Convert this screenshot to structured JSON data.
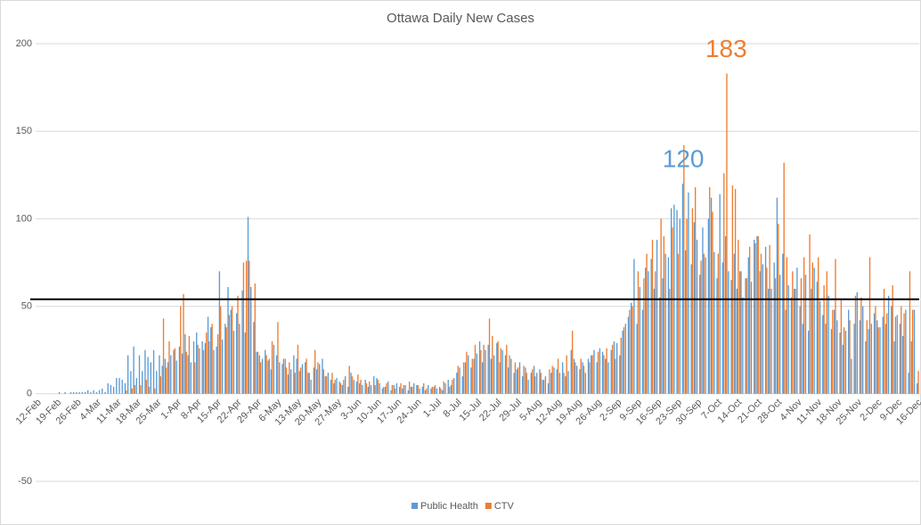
{
  "chart_data": {
    "type": "bar",
    "title": "Ottawa Daily New Cases",
    "categories": [
      "12-Feb",
      null,
      null,
      null,
      null,
      null,
      null,
      "19-Feb",
      null,
      null,
      null,
      null,
      null,
      null,
      "26-Feb",
      null,
      null,
      null,
      null,
      null,
      null,
      "4-Mar",
      null,
      null,
      null,
      null,
      null,
      null,
      "11-Mar",
      null,
      null,
      null,
      null,
      null,
      null,
      "18-Mar",
      null,
      null,
      null,
      null,
      null,
      null,
      "25-Mar",
      null,
      null,
      null,
      null,
      null,
      null,
      "1-Apr",
      null,
      null,
      null,
      null,
      null,
      null,
      "8-Apr",
      null,
      null,
      null,
      null,
      null,
      null,
      "15-Apr",
      null,
      null,
      null,
      null,
      null,
      null,
      "22-Apr",
      null,
      null,
      null,
      null,
      null,
      null,
      "29-Apr",
      null,
      null,
      null,
      null,
      null,
      null,
      "6-May",
      null,
      null,
      null,
      null,
      null,
      null,
      "13-May",
      null,
      null,
      null,
      null,
      null,
      null,
      "20-May",
      null,
      null,
      null,
      null,
      null,
      null,
      "27-May",
      null,
      null,
      null,
      null,
      null,
      null,
      "3-Jun",
      null,
      null,
      null,
      null,
      null,
      null,
      "10-Jun",
      null,
      null,
      null,
      null,
      null,
      null,
      "17-Jun",
      null,
      null,
      null,
      null,
      null,
      null,
      "24-Jun",
      null,
      null,
      null,
      null,
      null,
      null,
      "1-Jul",
      null,
      null,
      null,
      null,
      null,
      null,
      "8-Jul",
      null,
      null,
      null,
      null,
      null,
      null,
      "15-Jul",
      null,
      null,
      null,
      null,
      null,
      null,
      "22-Jul",
      null,
      null,
      null,
      null,
      null,
      null,
      "29-Jul",
      null,
      null,
      null,
      null,
      null,
      null,
      "5-Aug",
      null,
      null,
      null,
      null,
      null,
      null,
      "12-Aug",
      null,
      null,
      null,
      null,
      null,
      null,
      "19-Aug",
      null,
      null,
      null,
      null,
      null,
      null,
      "26-Aug",
      null,
      null,
      null,
      null,
      null,
      null,
      "2-Sep",
      null,
      null,
      null,
      null,
      null,
      null,
      "9-Sep",
      null,
      null,
      null,
      null,
      null,
      null,
      "16-Sep",
      null,
      null,
      null,
      null,
      null,
      null,
      "23-Sep",
      null,
      null,
      null,
      null,
      null,
      null,
      "30-Sep",
      null,
      null,
      null,
      null,
      null,
      null,
      "7-Oct",
      null,
      null,
      null,
      null,
      null,
      null,
      "14-Oct",
      null,
      null,
      null,
      null,
      null,
      null,
      "21-Oct",
      null,
      null,
      null,
      null,
      null,
      null,
      "28-Oct",
      null,
      null,
      null,
      null,
      null,
      null,
      "4-Nov",
      null,
      null,
      null,
      null,
      null,
      null,
      "11-Nov",
      null,
      null,
      null,
      null,
      null,
      null,
      "18-Nov",
      null,
      null,
      null,
      null,
      null,
      null,
      "25-Nov",
      null,
      null,
      null,
      null,
      null,
      null,
      "2-Dec",
      null,
      null,
      null,
      null,
      null,
      null,
      "9-Dec",
      null,
      null,
      null,
      null,
      null,
      null,
      "16-Dec"
    ],
    "series": [
      {
        "name": "Public Health",
        "color": "#5b9bd5",
        "values": [
          0,
          0,
          0,
          0,
          0,
          0,
          0,
          0,
          1,
          0,
          1,
          0,
          1,
          1,
          1,
          1,
          1,
          1,
          2,
          1,
          2,
          1,
          2,
          3,
          1,
          6,
          5,
          4,
          9,
          9,
          8,
          6,
          22,
          13,
          27,
          9,
          22,
          13,
          25,
          21,
          18,
          25,
          13,
          22,
          16,
          20,
          18,
          22,
          25,
          19,
          27,
          23,
          34,
          22,
          18,
          30,
          35,
          26,
          30,
          29,
          44,
          38,
          25,
          27,
          70,
          31,
          40,
          61,
          48,
          36,
          46,
          40,
          59,
          35,
          101,
          61,
          41,
          24,
          22,
          20,
          25,
          19,
          14,
          28,
          22,
          18,
          17,
          20,
          11,
          14,
          22,
          20,
          13,
          17,
          18,
          12,
          8,
          15,
          14,
          17,
          20,
          10,
          12,
          8,
          6,
          9,
          7,
          5,
          10,
          4,
          12,
          8,
          7,
          6,
          5,
          8,
          4,
          5,
          10,
          9,
          6,
          3,
          4,
          7,
          2,
          5,
          6,
          4,
          3,
          5,
          2,
          4,
          6,
          5,
          3,
          4,
          2,
          5,
          3,
          4,
          3,
          4,
          2,
          6,
          8,
          5,
          9,
          12,
          15,
          10,
          18,
          22,
          15,
          20,
          23,
          30,
          18,
          25,
          28,
          20,
          22,
          29,
          18,
          25,
          22,
          15,
          20,
          12,
          14,
          18,
          10,
          15,
          8,
          12,
          16,
          12,
          14,
          8,
          10,
          6,
          12,
          15,
          14,
          12,
          18,
          10,
          13,
          25,
          20,
          16,
          14,
          18,
          12,
          20,
          22,
          25,
          18,
          26,
          24,
          20,
          18,
          25,
          30,
          29,
          22,
          36,
          40,
          44,
          52,
          77,
          40,
          61,
          48,
          72,
          70,
          77,
          60,
          88,
          55,
          66,
          80,
          78,
          106,
          108,
          105,
          100,
          120,
          82,
          115,
          74,
          98,
          88,
          68,
          95,
          78,
          100,
          112,
          81,
          66,
          114,
          75,
          90,
          70,
          65,
          80,
          60,
          70,
          55,
          66,
          78,
          64,
          88,
          90,
          70,
          74,
          84,
          60,
          60,
          75,
          112,
          68,
          80,
          48,
          62,
          55,
          60,
          72,
          50,
          40,
          68,
          36,
          60,
          72,
          64,
          53,
          45,
          40,
          56,
          37,
          48,
          42,
          35,
          28,
          36,
          48,
          20,
          40,
          58,
          42,
          50,
          30,
          37,
          40,
          46,
          42,
          38,
          44,
          40,
          56,
          50,
          30,
          45,
          40,
          33,
          48,
          12,
          30,
          48,
          6
        ]
      },
      {
        "name": "CTV",
        "color": "#ed7d31",
        "values": [
          0,
          0,
          0,
          0,
          0,
          0,
          0,
          0,
          0,
          0,
          0,
          0,
          0,
          0,
          0,
          0,
          0,
          0,
          0,
          0,
          0,
          0,
          0,
          0,
          0,
          0,
          0,
          0,
          0,
          0,
          0,
          2,
          0,
          3,
          5,
          0,
          5,
          0,
          8,
          4,
          0,
          3,
          0,
          10,
          43,
          15,
          30,
          0,
          26,
          0,
          50,
          57,
          24,
          33,
          0,
          18,
          28,
          0,
          25,
          35,
          30,
          40,
          0,
          34,
          50,
          0,
          38,
          45,
          50,
          0,
          56,
          0,
          75,
          76,
          76,
          0,
          63,
          24,
          18,
          0,
          22,
          20,
          30,
          0,
          41,
          0,
          20,
          15,
          18,
          0,
          12,
          28,
          15,
          0,
          20,
          12,
          0,
          25,
          18,
          0,
          14,
          10,
          0,
          12,
          8,
          0,
          6,
          8,
          0,
          16,
          10,
          0,
          11,
          8,
          0,
          6,
          7,
          0,
          5,
          8,
          0,
          4,
          6,
          0,
          5,
          3,
          0,
          6,
          5,
          0,
          7,
          4,
          0,
          5,
          0,
          6,
          3,
          0,
          4,
          5,
          0,
          3,
          7,
          0,
          4,
          8,
          0,
          16,
          0,
          18,
          24,
          0,
          20,
          28,
          0,
          25,
          28,
          0,
          43,
          33,
          0,
          30,
          26,
          0,
          28,
          22,
          0,
          18,
          15,
          0,
          16,
          12,
          0,
          14,
          10,
          0,
          12,
          8,
          0,
          14,
          16,
          0,
          20,
          0,
          12,
          22,
          0,
          36,
          18,
          0,
          20,
          16,
          0,
          18,
          22,
          0,
          24,
          0,
          22,
          26,
          0,
          28,
          20,
          0,
          32,
          38,
          0,
          48,
          50,
          0,
          70,
          0,
          66,
          80,
          0,
          88,
          70,
          0,
          100,
          90,
          0,
          60,
          95,
          0,
          80,
          0,
          142,
          100,
          0,
          106,
          118,
          0,
          76,
          80,
          0,
          118,
          104,
          0,
          80,
          0,
          126,
          183,
          0,
          119,
          117,
          88,
          70,
          0,
          66,
          84,
          0,
          86,
          90,
          80,
          0,
          72,
          85,
          0,
          66,
          97,
          0,
          132,
          78,
          0,
          70,
          60,
          0,
          66,
          78,
          0,
          91,
          75,
          0,
          78,
          0,
          62,
          70,
          0,
          48,
          77,
          0,
          54,
          38,
          0,
          42,
          0,
          56,
          0,
          55,
          0,
          42,
          78,
          0,
          50,
          38,
          0,
          60,
          46,
          0,
          62,
          44,
          0,
          50,
          46,
          0,
          70,
          48,
          0,
          13
        ]
      }
    ],
    "ylim": [
      -50,
      200
    ],
    "yticks": [
      -50,
      0,
      50,
      100,
      150,
      200
    ],
    "grid": true,
    "hline": 54,
    "legend": "bottom"
  }
}
